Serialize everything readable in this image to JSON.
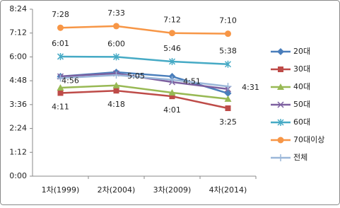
{
  "chart_data": {
    "type": "line",
    "categories": [
      "1차(1999)",
      "2차(2004)",
      "3차(2009)",
      "4차(2014)"
    ],
    "ylim": [
      0,
      504
    ],
    "yticks": [
      {
        "value": 0,
        "label": "0:00"
      },
      {
        "value": 72,
        "label": "1:12"
      },
      {
        "value": 144,
        "label": "2:24"
      },
      {
        "value": 216,
        "label": "3:36"
      },
      {
        "value": 288,
        "label": "4:48"
      },
      {
        "value": 360,
        "label": "6:00"
      },
      {
        "value": 432,
        "label": "7:12"
      },
      {
        "value": 504,
        "label": "8:24"
      }
    ],
    "grid": false,
    "legend": "right",
    "series": [
      {
        "name": "20대",
        "color": "#4a7ebb",
        "values": [
          301,
          314,
          301,
          250
        ]
      },
      {
        "name": "30대",
        "color": "#be4b48",
        "values": [
          251,
          258,
          241,
          205
        ],
        "value_labels": [
          "4:11",
          "4:18",
          "4:01",
          "3:25"
        ]
      },
      {
        "name": "40대",
        "color": "#98b954",
        "values": [
          267,
          274,
          252,
          233
        ]
      },
      {
        "name": "50대",
        "color": "#7d60a0",
        "values": [
          301,
          310,
          284,
          263
        ]
      },
      {
        "name": "60대",
        "color": "#46aac5",
        "values": [
          361,
          360,
          346,
          338
        ],
        "value_labels": [
          "6:01",
          "6:00",
          "5:46",
          "5:38"
        ]
      },
      {
        "name": "70대이상",
        "color": "#f79646",
        "values": [
          448,
          453,
          432,
          430
        ],
        "value_labels": [
          "7:28",
          "7:33",
          "7:12",
          "7:10"
        ]
      },
      {
        "name": "전체",
        "color": "#9bb7d9",
        "values": [
          296,
          305,
          291,
          271
        ],
        "value_labels": [
          "4:56",
          "5:05",
          "4:51",
          "4:31"
        ]
      }
    ]
  }
}
